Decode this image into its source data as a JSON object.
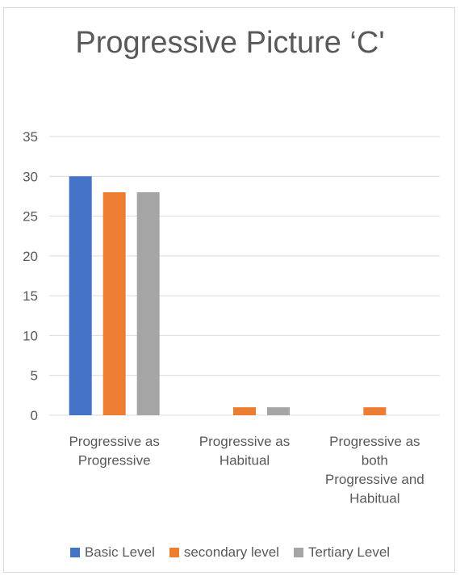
{
  "chart_data": {
    "type": "bar",
    "title": "Progressive Picture ‘C'",
    "categories": [
      [
        "Progressive as",
        "Progressive"
      ],
      [
        "Progressive as",
        "Habitual"
      ],
      [
        "Progressive as",
        "both",
        "Progressive and",
        "Habitual"
      ]
    ],
    "series": [
      {
        "name": "Basic Level",
        "color": "#4472C4",
        "values": [
          30,
          0,
          0
        ]
      },
      {
        "name": "secondary level",
        "color": "#ED7D31",
        "values": [
          28,
          1,
          1
        ]
      },
      {
        "name": "Tertiary Level",
        "color": "#A5A5A5",
        "values": [
          28,
          1,
          0
        ]
      }
    ],
    "ylim": [
      0,
      35
    ],
    "yticks": [
      0,
      5,
      10,
      15,
      20,
      25,
      30,
      35
    ],
    "grid": true,
    "legend_position": "bottom"
  }
}
